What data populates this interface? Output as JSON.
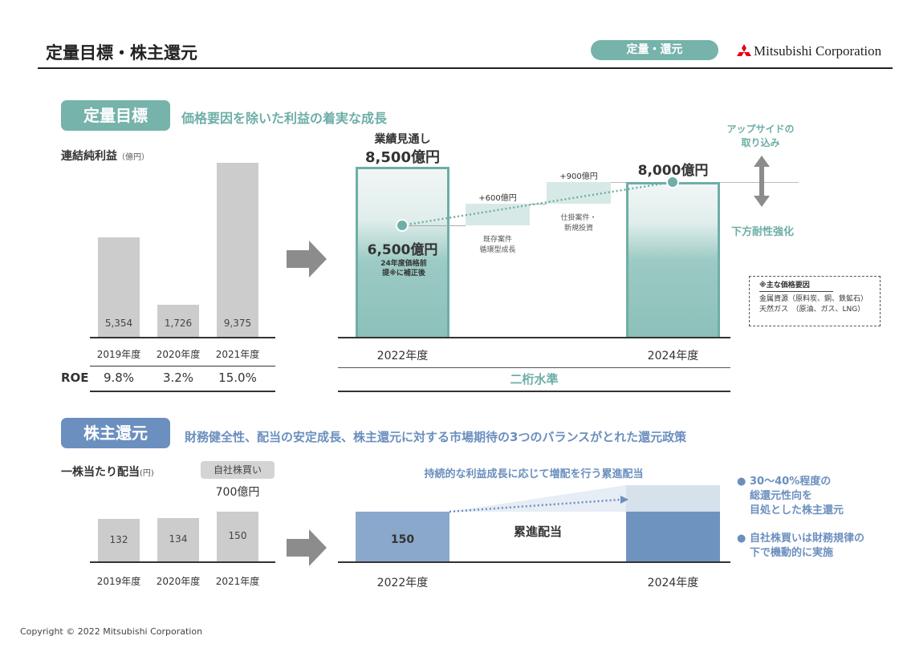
{
  "header": {
    "title": "定量目標・株主還元",
    "tag": "定量・還元",
    "company": "Mitsubishi Corporation"
  },
  "targets": {
    "badge": "定量目標",
    "headline": "価格要因を除いた利益の着実な成長",
    "net_income_label": "連結純利益",
    "net_income_unit": "（億円）",
    "roe_label": "ROE",
    "forecast_label": "業績見通し",
    "forecast_value": "8,500億円",
    "adjusted_value": "6,500億円",
    "adjusted_note": "24年度価格前提※に補正後",
    "step1_value": "+600億円",
    "step1_label_1": "既存案件",
    "step1_label_2": "循環型成長",
    "step2_value": "+900億円",
    "step2_label_1": "仕掛案件・",
    "step2_label_2": "新規投資",
    "target_value": "8,000億円",
    "upside_1": "アップサイドの",
    "upside_2": "取り込み",
    "downside": "下方耐性強化",
    "legend_title": "※主な価格要因",
    "legend_1": "金属資源（原料炭、銅、鉄鉱石）",
    "legend_2": "天然ガス　（原油、ガス、LNG）",
    "roe_level": "二桁水準",
    "year_a": "2022年度",
    "year_b": "2024年度"
  },
  "returns": {
    "badge": "株主還元",
    "headline": "財務健全性、配当の安定成長、株主還元に対する市場期待の3つのバランスがとれた還元政策",
    "dps_label": "一株当たり配当",
    "dps_unit": "(円)",
    "buyback_label": "自社株買い",
    "buyback_value": "700億円",
    "progressive_headline": "持続的な利益成長に応じて増配を行う累進配当",
    "progressive_label": "累進配当",
    "bar_2022_value": "150",
    "bullet_1_lines": [
      "30～40%程度の",
      "総還元性向を",
      "目処とした株主還元"
    ],
    "bullet_2_lines": [
      "自社株買いは財務規律の",
      "下で機動的に実施"
    ],
    "year_a": "2022年度",
    "year_b": "2024年度"
  },
  "chart_data": [
    {
      "type": "bar",
      "title": "連結純利益（億円）",
      "categories": [
        "2019年度",
        "2020年度",
        "2021年度"
      ],
      "values": [
        5354,
        1726,
        9375
      ],
      "value_labels": [
        "5,354",
        "1,726",
        "9,375"
      ],
      "roe": [
        "9.8%",
        "3.2%",
        "15.0%"
      ]
    },
    {
      "type": "bar",
      "title": "一株当たり配当（円）",
      "categories": [
        "2019年度",
        "2020年度",
        "2021年度"
      ],
      "values": [
        132,
        134,
        150
      ]
    }
  ],
  "footer": {
    "copyright": "Copyright © 2022 Mitsubishi Corporation"
  },
  "colors": {
    "teal": "#6eaea7",
    "blue": "#6b8fbe",
    "gray": "#cccccc"
  }
}
